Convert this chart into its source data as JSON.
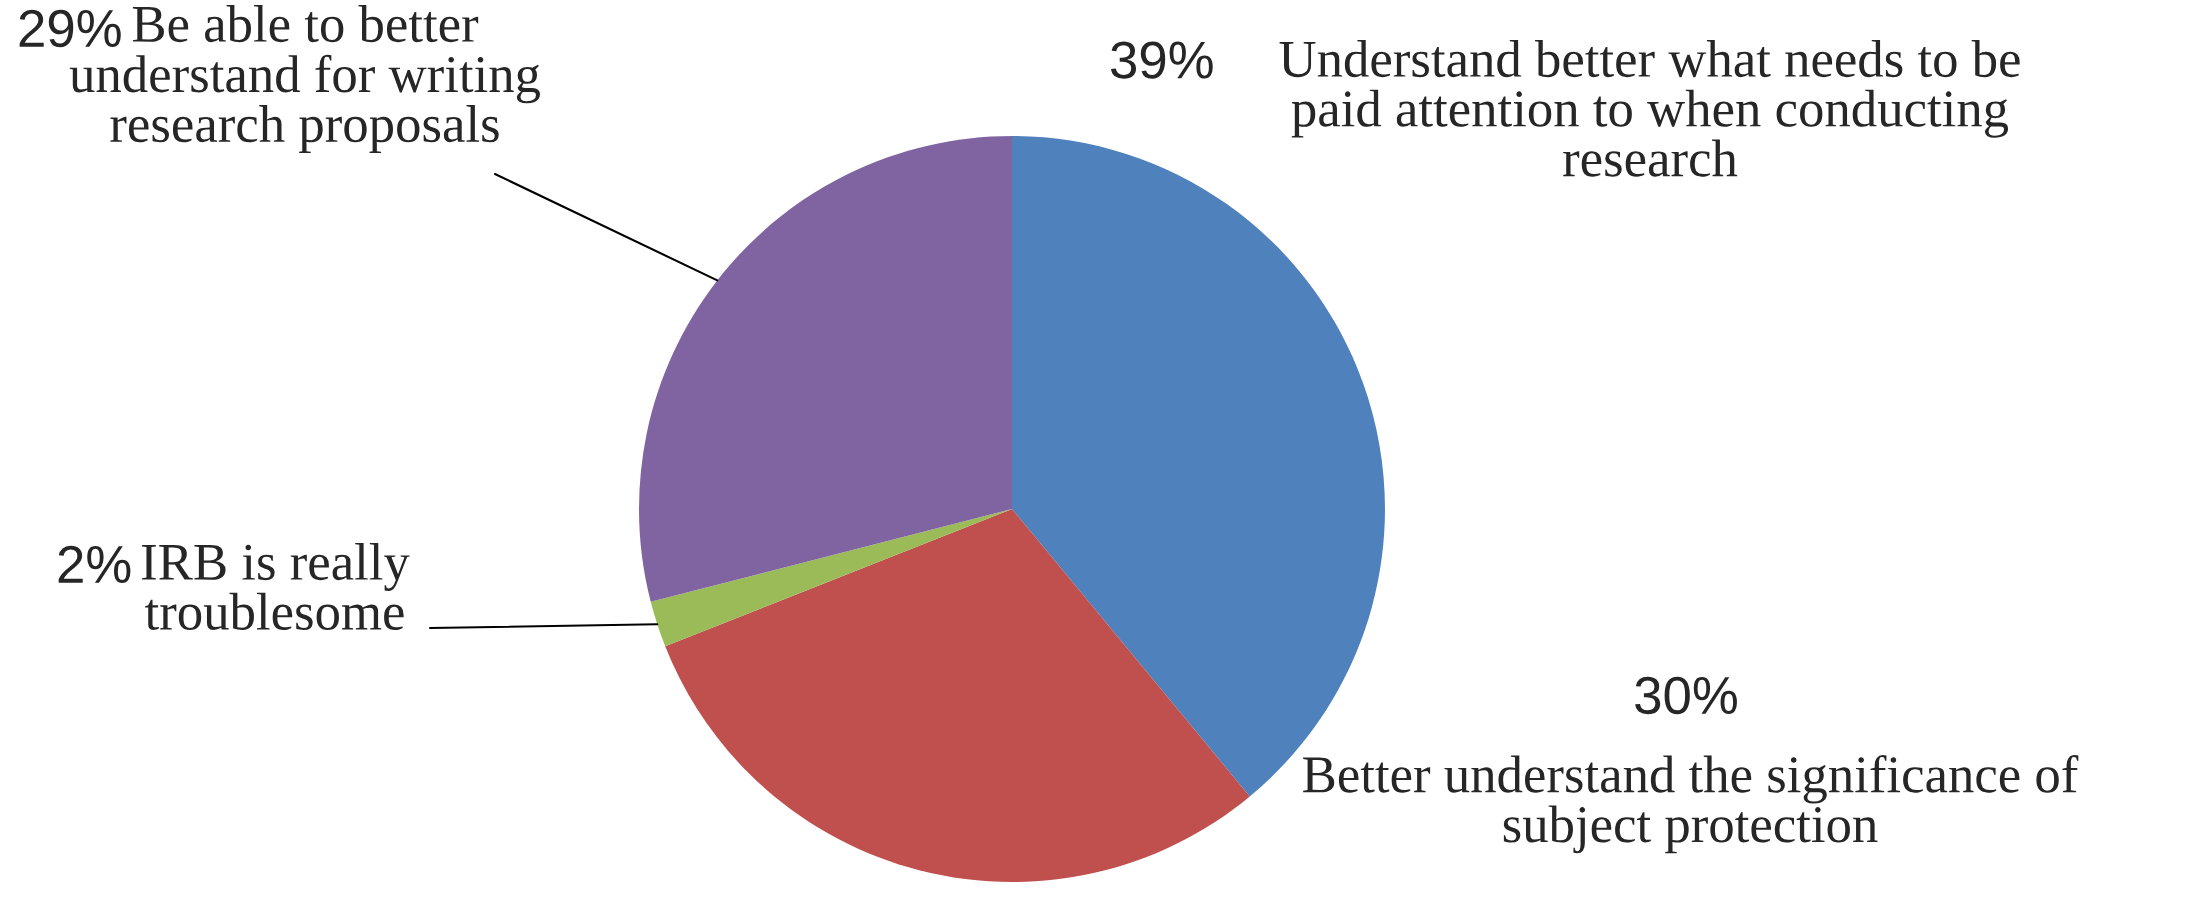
{
  "chart_data": {
    "type": "pie",
    "categories": [
      "Understand better what needs to be\npaid attention to when conducting\nresearch",
      "Better understand the significance of\nsubject protection",
      "IRB is really\ntroublesome",
      "Be able to better\nunderstand for writing\nresearch proposals"
    ],
    "values": [
      39,
      30,
      2,
      29
    ],
    "value_labels": [
      "39%",
      "30%",
      "2%",
      "29%"
    ],
    "colors": [
      "#4f81bd",
      "#c0504d",
      "#9bbb59",
      "#8064a2"
    ]
  }
}
